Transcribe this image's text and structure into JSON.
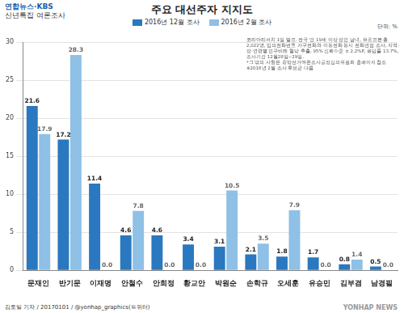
{
  "chart_data": {
    "type": "bar",
    "title": "주요 대선주자 지지도",
    "subtitle": "연합뉴스·KBS 신년특집 여론조사",
    "y_label": "단위: %",
    "categories": [
      "문재인",
      "반기문",
      "이재명",
      "안철수",
      "안희정",
      "황교안",
      "박원순",
      "손학규",
      "오세훈",
      "유승민",
      "김부겸",
      "남경필"
    ],
    "series": [
      {
        "name": "2016년 12월 조사",
        "color": "#2a78bf",
        "values": [
          21.6,
          17.2,
          11.4,
          4.6,
          4.6,
          3.4,
          3.1,
          2.1,
          1.8,
          1.7,
          0.8,
          0.5
        ],
        "value_labels": [
          "21.6",
          "17.2",
          "11.4",
          "4.6",
          "4.6",
          "3.4",
          "3.1",
          "2.1",
          "1.8",
          "1.7",
          "0.8",
          "0.5"
        ]
      },
      {
        "name": "2016년 2월 조사",
        "color": "#8fc0e6",
        "values": [
          17.9,
          28.3,
          0.0,
          7.8,
          0.0,
          0.0,
          10.5,
          3.5,
          7.9,
          0.0,
          1.4,
          0.0
        ],
        "value_labels": [
          "17.9",
          "28.3",
          "0.0",
          "7.8",
          "0.0",
          "0.0",
          "10.5",
          "3.5",
          "7.9",
          "0.0",
          "1.4",
          "0.0"
        ]
      }
    ],
    "ylim": [
      0,
      30
    ],
    "yticks": [
      0,
      5,
      10,
      15,
      20,
      25,
      30
    ],
    "grid": true,
    "legend": "top",
    "data_labels": true,
    "annotations": [
      "코리아리서치 1일 발표. 전국 만 19세 이상 성인 남녀, 유효표본 총 2,022명, 임의전화번호 가구전화와 이동전화 동시 전화면접 조사, 지역·성·연령별 인구비례 할당 추출, 95% 신뢰수준 ± 2.2%P, 응답률 13.7%, 조사기간 12월28일~29일.",
      "*그 밖의 사항은 중앙선거여론조사공정심의위원회 홈페이지 참조",
      "※2016년 2월 조사 후보군 다름"
    ],
    "credit": "김토일 기자 / 20170101 / @yonhap_graphics(트위터)",
    "watermark": "YONHAP NEWS"
  }
}
